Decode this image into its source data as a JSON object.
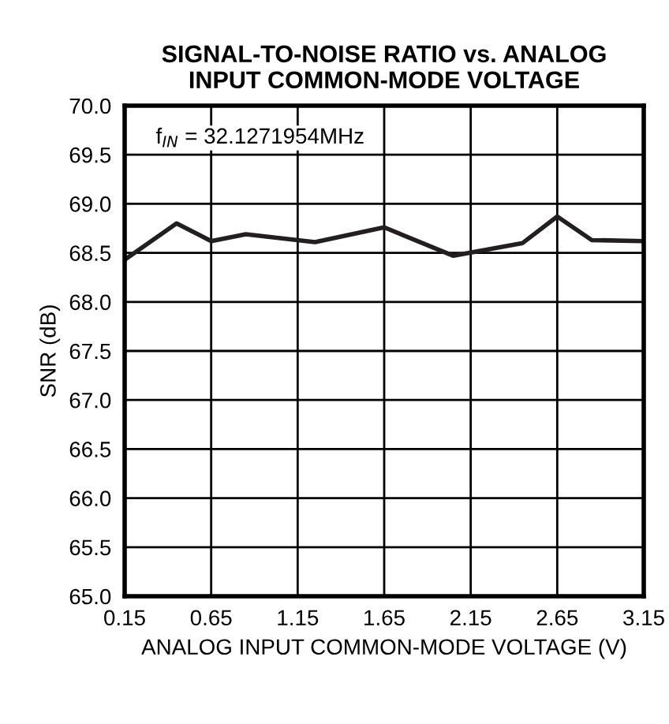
{
  "chart_data": {
    "type": "line",
    "title": "SIGNAL-TO-NOISE RATIO vs. ANALOG\nINPUT COMMON-MODE VOLTAGE",
    "xlabel": "ANALOG INPUT COMMON-MODE VOLTAGE (V)",
    "ylabel": "SNR (dB)",
    "annotations": [
      "f$_{IN}$ = 32.1271954MHz"
    ],
    "series": [
      {
        "color": "#231f20",
        "x": [
          0.15,
          0.45,
          0.65,
          0.85,
          1.25,
          1.65,
          2.05,
          2.45,
          2.65,
          2.85,
          3.15
        ],
        "values": [
          68.43,
          68.8,
          68.62,
          68.69,
          68.61,
          68.76,
          68.47,
          68.6,
          68.87,
          68.63,
          68.62
        ]
      }
    ],
    "xlim": [
      0.15,
      3.15
    ],
    "ylim": [
      65.0,
      70.0
    ],
    "xticks": [
      0.15,
      0.65,
      1.15,
      1.65,
      2.15,
      2.65,
      3.15
    ],
    "yticks": [
      {
        "value": 65,
        "label": "65.0"
      },
      {
        "value": 65.5,
        "label": "65.5"
      },
      {
        "value": 66,
        "label": "66.0"
      },
      {
        "value": 66.5,
        "label": "66.5"
      },
      {
        "value": 67,
        "label": "67.0"
      },
      {
        "value": 67.5,
        "label": "67.5"
      },
      {
        "value": 68,
        "label": "68.0"
      },
      {
        "value": 68.5,
        "label": "68.5"
      },
      {
        "value": 69,
        "label": "69.0"
      },
      {
        "value": 69.5,
        "label": "69.5"
      },
      {
        "value": 70,
        "label": "70.0"
      }
    ],
    "grid": true,
    "marker": "none",
    "line_style": "solid",
    "legend": false
  }
}
